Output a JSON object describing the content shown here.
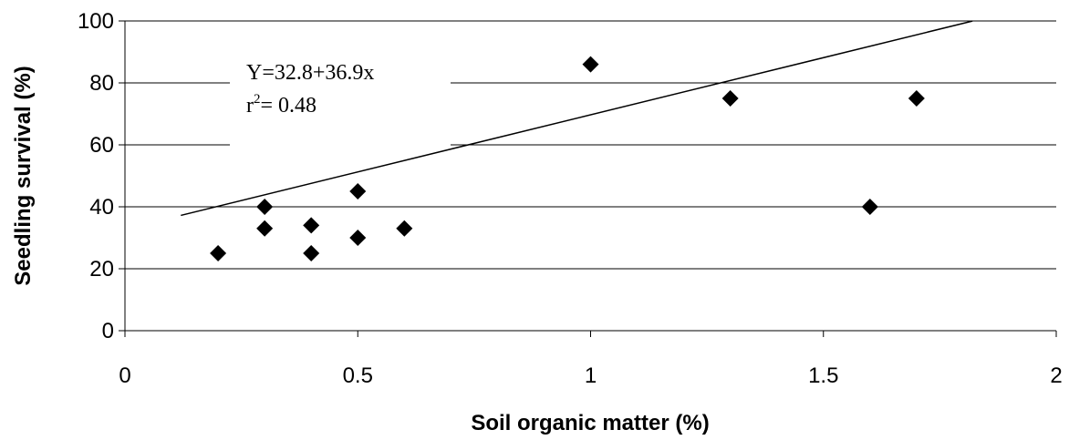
{
  "chart_data": {
    "type": "scatter",
    "xlabel": "Soil organic matter (%)",
    "ylabel": "Seedling survival (%)",
    "xlim": [
      0,
      2
    ],
    "ylim": [
      0,
      100
    ],
    "x_ticks": [
      "0",
      "0.5",
      "1",
      "1.5",
      "2"
    ],
    "y_ticks": [
      "0",
      "20",
      "40",
      "60",
      "80",
      "100"
    ],
    "grid": "horizontal",
    "marker": "diamond",
    "marker_color": "#000000",
    "points": [
      {
        "x": 0.2,
        "y": 25
      },
      {
        "x": 0.3,
        "y": 33
      },
      {
        "x": 0.3,
        "y": 40
      },
      {
        "x": 0.4,
        "y": 25
      },
      {
        "x": 0.4,
        "y": 34
      },
      {
        "x": 0.5,
        "y": 30
      },
      {
        "x": 0.5,
        "y": 45
      },
      {
        "x": 0.6,
        "y": 33
      },
      {
        "x": 1.0,
        "y": 86
      },
      {
        "x": 1.3,
        "y": 75
      },
      {
        "x": 1.6,
        "y": 40
      },
      {
        "x": 1.7,
        "y": 75
      }
    ],
    "trendline": {
      "intercept": 32.8,
      "slope": 36.9,
      "x_range": [
        0.12,
        1.82
      ]
    },
    "annotation": {
      "equation": "Y=32.8+36.9x",
      "r_label": "r",
      "r_exponent": "2",
      "r_value": "= 0.48"
    }
  }
}
